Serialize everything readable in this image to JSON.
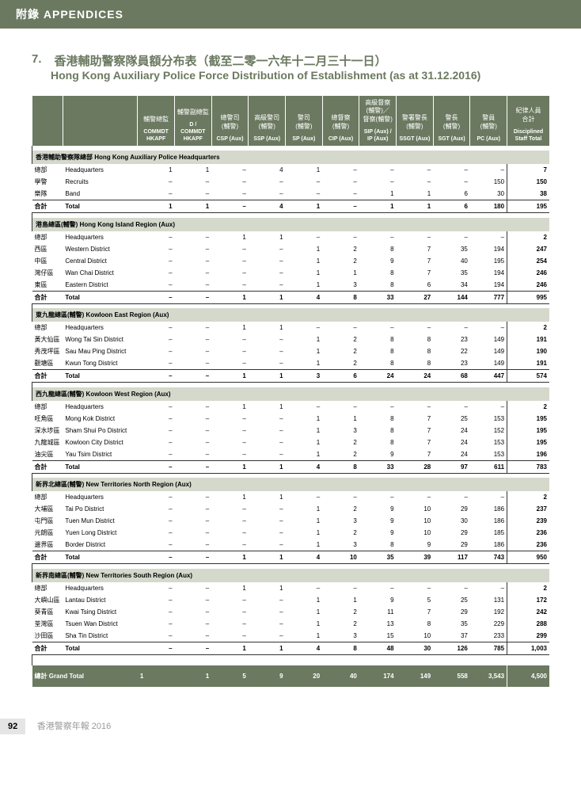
{
  "header_band": "附錄 APPENDICES",
  "section_num": "7.",
  "title_cn": "香港輔助警察隊員額分布表（截至二零一六年十二月三十一日）",
  "title_en": "Hong Kong Auxiliary Police Force Distribution of Establishment (as at 31.12.2016)",
  "cols": [
    {
      "h": "",
      "s": ""
    },
    {
      "h": "",
      "s": ""
    },
    {
      "h": "輔警總監",
      "s": "COMMDT HKAPF"
    },
    {
      "h": "輔警副總監",
      "s": "D / COMMDT HKAPF"
    },
    {
      "h": "總警司 (輔警)",
      "s": "CSP (Aux)"
    },
    {
      "h": "高級警司 (輔警)",
      "s": "SSP (Aux)"
    },
    {
      "h": "警司 (輔警)",
      "s": "SP (Aux)"
    },
    {
      "h": "總督察 (輔警)",
      "s": "CIP (Aux)"
    },
    {
      "h": "高級督察 (輔警)／ 督察(輔警)",
      "s": "SIP (Aux) / IP (Aux)"
    },
    {
      "h": "警署警長 (輔警)",
      "s": "SSGT (Aux)"
    },
    {
      "h": "警長 (輔警)",
      "s": "SGT (Aux)"
    },
    {
      "h": "警員 (輔警)",
      "s": "PC (Aux)"
    },
    {
      "h": "紀律人員 合計",
      "s": "Disciplined Staff Total"
    }
  ],
  "sections": [
    {
      "head": "香港輔助警察隊總部 Hong Kong Auxiliary Police Headquarters",
      "rows": [
        {
          "l1": "總部",
          "l2": "Headquarters",
          "c": [
            "1",
            "1",
            "–",
            "4",
            "1",
            "–",
            "–",
            "–",
            "–",
            "–",
            "7"
          ]
        },
        {
          "l1": "學警",
          "l2": "Recruits",
          "c": [
            "–",
            "–",
            "–",
            "–",
            "–",
            "–",
            "–",
            "–",
            "–",
            "150",
            "150"
          ]
        },
        {
          "l1": "樂隊",
          "l2": "Band",
          "c": [
            "–",
            "–",
            "–",
            "–",
            "–",
            "–",
            "1",
            "1",
            "6",
            "30",
            "38"
          ]
        }
      ],
      "total": {
        "l1": "合計",
        "l2": "Total",
        "c": [
          "1",
          "1",
          "–",
          "4",
          "1",
          "–",
          "1",
          "1",
          "6",
          "180",
          "195"
        ]
      }
    },
    {
      "head": "港島總區(輔警) Hong Kong Island Region (Aux)",
      "rows": [
        {
          "l1": "總部",
          "l2": "Headquarters",
          "c": [
            "–",
            "–",
            "1",
            "1",
            "–",
            "–",
            "–",
            "–",
            "–",
            "–",
            "2"
          ]
        },
        {
          "l1": "西區",
          "l2": "Western District",
          "c": [
            "–",
            "–",
            "–",
            "–",
            "1",
            "2",
            "8",
            "7",
            "35",
            "194",
            "247"
          ]
        },
        {
          "l1": "中區",
          "l2": "Central District",
          "c": [
            "–",
            "–",
            "–",
            "–",
            "1",
            "2",
            "9",
            "7",
            "40",
            "195",
            "254"
          ]
        },
        {
          "l1": "灣仔區",
          "l2": "Wan Chai District",
          "c": [
            "–",
            "–",
            "–",
            "–",
            "1",
            "1",
            "8",
            "7",
            "35",
            "194",
            "246"
          ]
        },
        {
          "l1": "東區",
          "l2": "Eastern District",
          "c": [
            "–",
            "–",
            "–",
            "–",
            "1",
            "3",
            "8",
            "6",
            "34",
            "194",
            "246"
          ]
        }
      ],
      "total": {
        "l1": "合計",
        "l2": "Total",
        "c": [
          "–",
          "–",
          "1",
          "1",
          "4",
          "8",
          "33",
          "27",
          "144",
          "777",
          "995"
        ]
      }
    },
    {
      "head": "東九龍總區(輔警) Kowloon East Region (Aux)",
      "rows": [
        {
          "l1": "總部",
          "l2": "Headquarters",
          "c": [
            "–",
            "–",
            "1",
            "1",
            "–",
            "–",
            "–",
            "–",
            "–",
            "–",
            "2"
          ]
        },
        {
          "l1": "黃大仙區",
          "l2": "Wong Tai Sin District",
          "c": [
            "–",
            "–",
            "–",
            "–",
            "1",
            "2",
            "8",
            "8",
            "23",
            "149",
            "191"
          ]
        },
        {
          "l1": "秀茂坪區",
          "l2": "Sau Mau Ping District",
          "c": [
            "–",
            "–",
            "–",
            "–",
            "1",
            "2",
            "8",
            "8",
            "22",
            "149",
            "190"
          ]
        },
        {
          "l1": "觀塘區",
          "l2": "Kwun Tong District",
          "c": [
            "–",
            "–",
            "–",
            "–",
            "1",
            "2",
            "8",
            "8",
            "23",
            "149",
            "191"
          ]
        }
      ],
      "total": {
        "l1": "合計",
        "l2": "Total",
        "c": [
          "–",
          "–",
          "1",
          "1",
          "3",
          "6",
          "24",
          "24",
          "68",
          "447",
          "574"
        ]
      }
    },
    {
      "head": "西九龍總區(輔警) Kowloon West Region (Aux)",
      "rows": [
        {
          "l1": "總部",
          "l2": "Headquarters",
          "c": [
            "–",
            "–",
            "1",
            "1",
            "–",
            "–",
            "–",
            "–",
            "–",
            "–",
            "2"
          ]
        },
        {
          "l1": "旺角區",
          "l2": "Mong Kok District",
          "c": [
            "–",
            "–",
            "–",
            "–",
            "1",
            "1",
            "8",
            "7",
            "25",
            "153",
            "195"
          ]
        },
        {
          "l1": "深水埗區",
          "l2": "Sham Shui Po District",
          "c": [
            "–",
            "–",
            "–",
            "–",
            "1",
            "3",
            "8",
            "7",
            "24",
            "152",
            "195"
          ]
        },
        {
          "l1": "九龍城區",
          "l2": "Kowloon City District",
          "c": [
            "–",
            "–",
            "–",
            "–",
            "1",
            "2",
            "8",
            "7",
            "24",
            "153",
            "195"
          ]
        },
        {
          "l1": "油尖區",
          "l2": "Yau Tsim District",
          "c": [
            "–",
            "–",
            "–",
            "–",
            "1",
            "2",
            "9",
            "7",
            "24",
            "153",
            "196"
          ]
        }
      ],
      "total": {
        "l1": "合計",
        "l2": "Total",
        "c": [
          "–",
          "–",
          "1",
          "1",
          "4",
          "8",
          "33",
          "28",
          "97",
          "611",
          "783"
        ]
      }
    },
    {
      "head": "新界北總區(輔警) New Territories North Region (Aux)",
      "rows": [
        {
          "l1": "總部",
          "l2": "Headquarters",
          "c": [
            "–",
            "–",
            "1",
            "1",
            "–",
            "–",
            "–",
            "–",
            "–",
            "–",
            "2"
          ]
        },
        {
          "l1": "大埔區",
          "l2": "Tai Po District",
          "c": [
            "–",
            "–",
            "–",
            "–",
            "1",
            "2",
            "9",
            "10",
            "29",
            "186",
            "237"
          ]
        },
        {
          "l1": "屯門區",
          "l2": "Tuen Mun District",
          "c": [
            "–",
            "–",
            "–",
            "–",
            "1",
            "3",
            "9",
            "10",
            "30",
            "186",
            "239"
          ]
        },
        {
          "l1": "元朗區",
          "l2": "Yuen Long District",
          "c": [
            "–",
            "–",
            "–",
            "–",
            "1",
            "2",
            "9",
            "10",
            "29",
            "185",
            "236"
          ]
        },
        {
          "l1": "邊界區",
          "l2": "Border District",
          "c": [
            "–",
            "–",
            "–",
            "–",
            "1",
            "3",
            "8",
            "9",
            "29",
            "186",
            "236"
          ]
        }
      ],
      "total": {
        "l1": "合計",
        "l2": "Total",
        "c": [
          "–",
          "–",
          "1",
          "1",
          "4",
          "10",
          "35",
          "39",
          "117",
          "743",
          "950"
        ]
      }
    },
    {
      "head": "新界南總區(輔警) New Territories South Region (Aux)",
      "rows": [
        {
          "l1": "總部",
          "l2": "Headquarters",
          "c": [
            "–",
            "–",
            "1",
            "1",
            "–",
            "–",
            "–",
            "–",
            "–",
            "–",
            "2"
          ]
        },
        {
          "l1": "大嶼山區",
          "l2": "Lantau District",
          "c": [
            "–",
            "–",
            "–",
            "–",
            "1",
            "1",
            "9",
            "5",
            "25",
            "131",
            "172"
          ]
        },
        {
          "l1": "葵青區",
          "l2": "Kwai Tsing District",
          "c": [
            "–",
            "–",
            "–",
            "–",
            "1",
            "2",
            "11",
            "7",
            "29",
            "192",
            "242"
          ]
        },
        {
          "l1": "荃灣區",
          "l2": "Tsuen Wan District",
          "c": [
            "–",
            "–",
            "–",
            "–",
            "1",
            "2",
            "13",
            "8",
            "35",
            "229",
            "288"
          ]
        },
        {
          "l1": "沙田區",
          "l2": "Sha Tin District",
          "c": [
            "–",
            "–",
            "–",
            "–",
            "1",
            "3",
            "15",
            "10",
            "37",
            "233",
            "299"
          ]
        }
      ],
      "total": {
        "l1": "合計",
        "l2": "Total",
        "c": [
          "–",
          "–",
          "1",
          "1",
          "4",
          "8",
          "48",
          "30",
          "126",
          "785",
          "1,003"
        ]
      }
    }
  ],
  "grand": {
    "l1": "總計 Grand Total",
    "c": [
      "1",
      "1",
      "5",
      "9",
      "20",
      "40",
      "174",
      "149",
      "558",
      "3,543",
      "4,500"
    ]
  },
  "page_num": "92",
  "footer_text": "香港警察年報 2016",
  "colors": {
    "brand": "#6b7960",
    "section_bg": "#d4d9cc",
    "footer_grey": "#999",
    "pgnum_bg": "#e5e5e5"
  }
}
